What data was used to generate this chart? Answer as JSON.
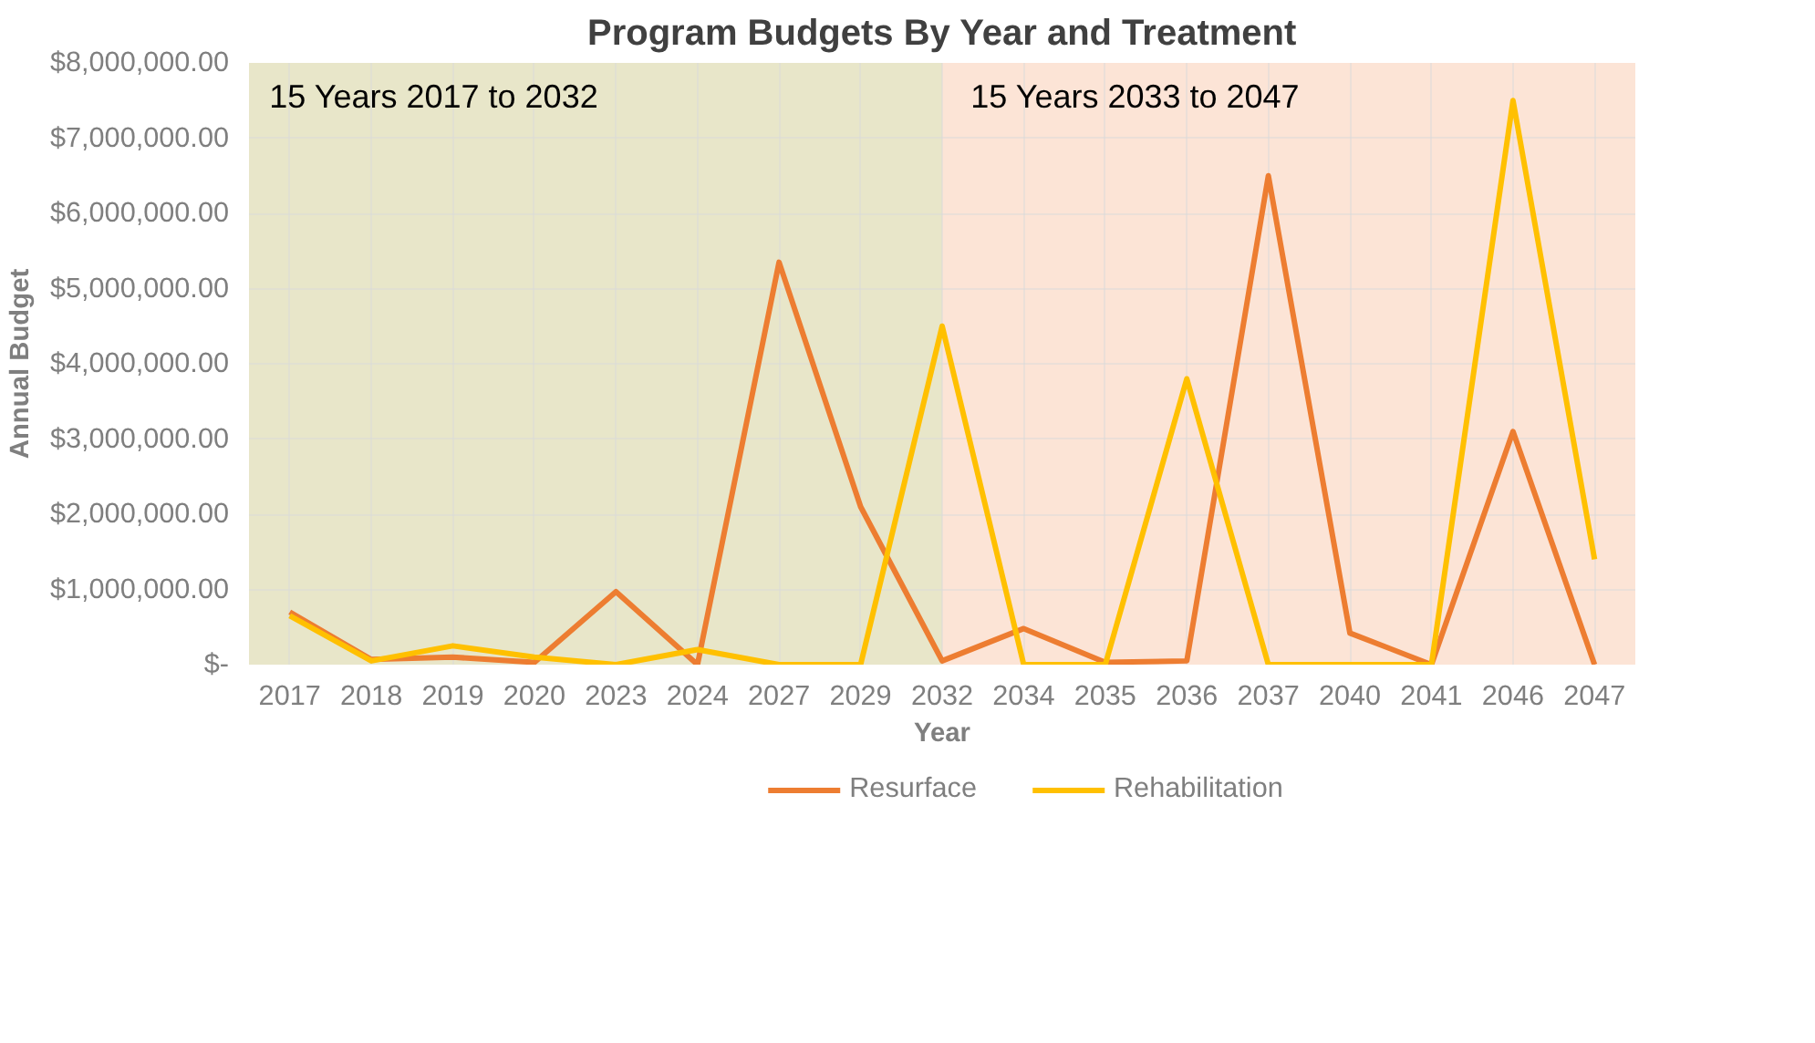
{
  "chart_data": {
    "type": "line",
    "title": "Program Budgets By Year and Treatment",
    "xlabel": "Year",
    "ylabel": "Annual Budget",
    "categories": [
      "2017",
      "2018",
      "2019",
      "2020",
      "2023",
      "2024",
      "2027",
      "2029",
      "2032",
      "2034",
      "2035",
      "2036",
      "2037",
      "2040",
      "2041",
      "2046",
      "2047"
    ],
    "series": [
      {
        "name": "Resurface",
        "color": "#ed7d31",
        "values": [
          700000,
          70000,
          100000,
          30000,
          970000,
          0,
          5350000,
          2100000,
          50000,
          480000,
          30000,
          50000,
          6500000,
          420000,
          0,
          3100000,
          0
        ]
      },
      {
        "name": "Rehabilitation",
        "color": "#ffc000",
        "values": [
          650000,
          50000,
          250000,
          100000,
          0,
          200000,
          0,
          0,
          4500000,
          0,
          0,
          3800000,
          0,
          0,
          0,
          7500000,
          1400000
        ]
      }
    ],
    "ylim": [
      0,
      8000000
    ],
    "yticks": [
      {
        "value": 0,
        "label": "$-"
      },
      {
        "value": 1000000,
        "label": "$1,000,000.00"
      },
      {
        "value": 2000000,
        "label": "$2,000,000.00"
      },
      {
        "value": 3000000,
        "label": "$3,000,000.00"
      },
      {
        "value": 4000000,
        "label": "$4,000,000.00"
      },
      {
        "value": 5000000,
        "label": "$5,000,000.00"
      },
      {
        "value": 6000000,
        "label": "$6,000,000.00"
      },
      {
        "value": 7000000,
        "label": "$7,000,000.00"
      },
      {
        "value": 8000000,
        "label": "$8,000,000.00"
      }
    ],
    "bands": [
      {
        "axis": "x",
        "from": "2017",
        "to": "2032",
        "label": "15 Years 2017 to 2032",
        "color": "#e8e6c9"
      },
      {
        "axis": "x",
        "from": "2032",
        "to": "2047",
        "label": "15 Years 2033 to 2047",
        "color": "#fce4d6"
      }
    ],
    "grid": true,
    "legend": "bottom",
    "line_style": "solid",
    "marker": "none"
  }
}
